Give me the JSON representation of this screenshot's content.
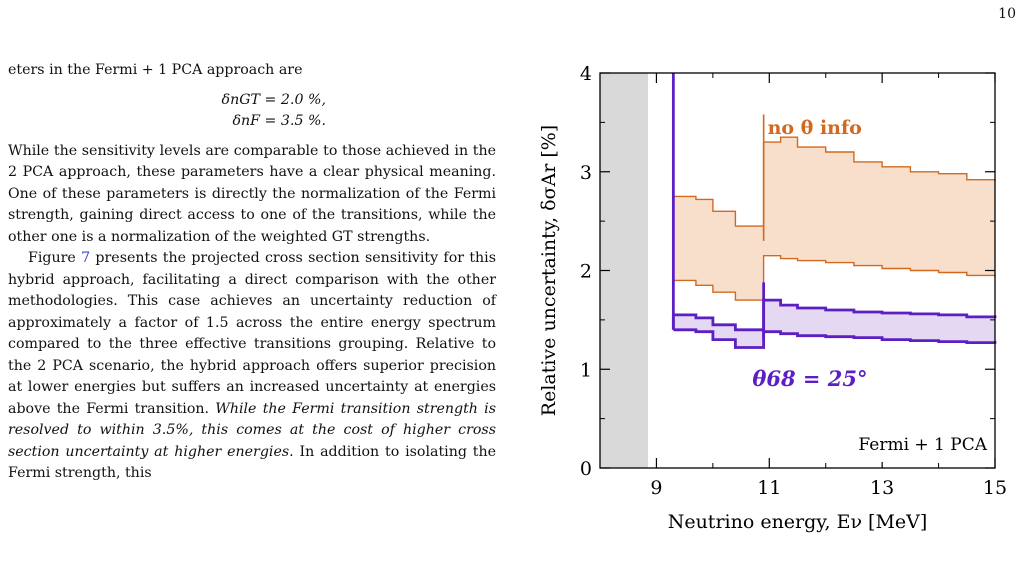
{
  "page_number": "10",
  "text": {
    "line0": "eters in the Fermi + 1 PCA approach are",
    "eq1": "δnGT = 2.0 %,",
    "eq2": "δnF = 3.5 %.",
    "p1": "While the sensitivity levels are comparable to those achieved in the 2 PCA approach, these parameters have a clear physical meaning. One of these parameters is directly the normalization of the Fermi strength, gaining direct access to one of the transitions, while the other one is a normalization of the weighted GT strengths.",
    "p2a": "Figure ",
    "p2_link": "7",
    "p2b": " presents the projected cross section sensitivity for this hybrid approach, facilitating a direct comparison with the other methodologies. This case achieves an uncertainty reduction of approximately a factor of 1.5 across the entire energy spectrum compared to the three effective transitions grouping. Relative to the 2 PCA scenario, the hybrid approach offers superior precision at lower energies but suffers an increased uncertainty at energies above the Fermi transition. ",
    "p2_italic": "While the Fermi transition strength is resolved to within 3.5%, this comes at the cost of higher cross section uncertainty at higher energies.",
    "p2c": " In addition to isolating the Fermi strength, this"
  },
  "chart_data": {
    "type": "area",
    "title": "",
    "xlabel": "Neutrino energy, Eν [MeV]",
    "ylabel": "Relative uncertainty, δσAr [%]",
    "xlim": [
      8,
      15
    ],
    "ylim": [
      0,
      4
    ],
    "xticks": [
      9,
      11,
      13,
      15
    ],
    "yticks": [
      0,
      1,
      2,
      3,
      4
    ],
    "shaded_region": {
      "x": [
        8,
        8.85
      ],
      "color": "#d9d9d9"
    },
    "panel_label": "Fermi + 1 PCA",
    "series": [
      {
        "name": "no θ info",
        "color": "#d2691e",
        "fill": "#f8dfcc",
        "upper": [
          [
            9.3,
            2.75
          ],
          [
            9.7,
            2.72
          ],
          [
            10.0,
            2.6
          ],
          [
            10.4,
            2.45
          ],
          [
            10.9,
            2.4
          ],
          [
            10.9,
            3.3
          ],
          [
            11.2,
            3.35
          ],
          [
            11.5,
            3.25
          ],
          [
            12.0,
            3.2
          ],
          [
            12.5,
            3.1
          ],
          [
            13.0,
            3.05
          ],
          [
            13.5,
            3.0
          ],
          [
            14.0,
            2.98
          ],
          [
            14.5,
            2.92
          ],
          [
            15.0,
            2.9
          ]
        ],
        "lower": [
          [
            9.3,
            1.9
          ],
          [
            9.7,
            1.85
          ],
          [
            10.0,
            1.78
          ],
          [
            10.4,
            1.7
          ],
          [
            10.9,
            1.68
          ],
          [
            10.9,
            2.15
          ],
          [
            11.2,
            2.12
          ],
          [
            11.5,
            2.1
          ],
          [
            12.0,
            2.08
          ],
          [
            12.5,
            2.05
          ],
          [
            13.0,
            2.02
          ],
          [
            13.5,
            2.0
          ],
          [
            14.0,
            1.98
          ],
          [
            14.5,
            1.95
          ],
          [
            15.0,
            1.93
          ]
        ]
      },
      {
        "name": "θ68 = 25°",
        "color": "#5b1fc4",
        "fill": "#e4d8f2",
        "upper": [
          [
            9.3,
            1.55
          ],
          [
            9.7,
            1.52
          ],
          [
            10.0,
            1.45
          ],
          [
            10.4,
            1.4
          ],
          [
            10.9,
            1.38
          ],
          [
            10.9,
            1.7
          ],
          [
            11.2,
            1.65
          ],
          [
            11.5,
            1.62
          ],
          [
            12.0,
            1.6
          ],
          [
            12.5,
            1.58
          ],
          [
            13.0,
            1.57
          ],
          [
            13.5,
            1.56
          ],
          [
            14.0,
            1.55
          ],
          [
            14.5,
            1.53
          ],
          [
            15.0,
            1.52
          ]
        ],
        "lower": [
          [
            9.3,
            1.4
          ],
          [
            9.7,
            1.38
          ],
          [
            10.0,
            1.3
          ],
          [
            10.4,
            1.22
          ],
          [
            10.9,
            1.22
          ],
          [
            10.9,
            1.38
          ],
          [
            11.2,
            1.36
          ],
          [
            11.5,
            1.34
          ],
          [
            12.0,
            1.33
          ],
          [
            12.5,
            1.32
          ],
          [
            13.0,
            1.3
          ],
          [
            13.5,
            1.29
          ],
          [
            14.0,
            1.28
          ],
          [
            14.5,
            1.27
          ],
          [
            15.0,
            1.26
          ]
        ]
      }
    ]
  }
}
